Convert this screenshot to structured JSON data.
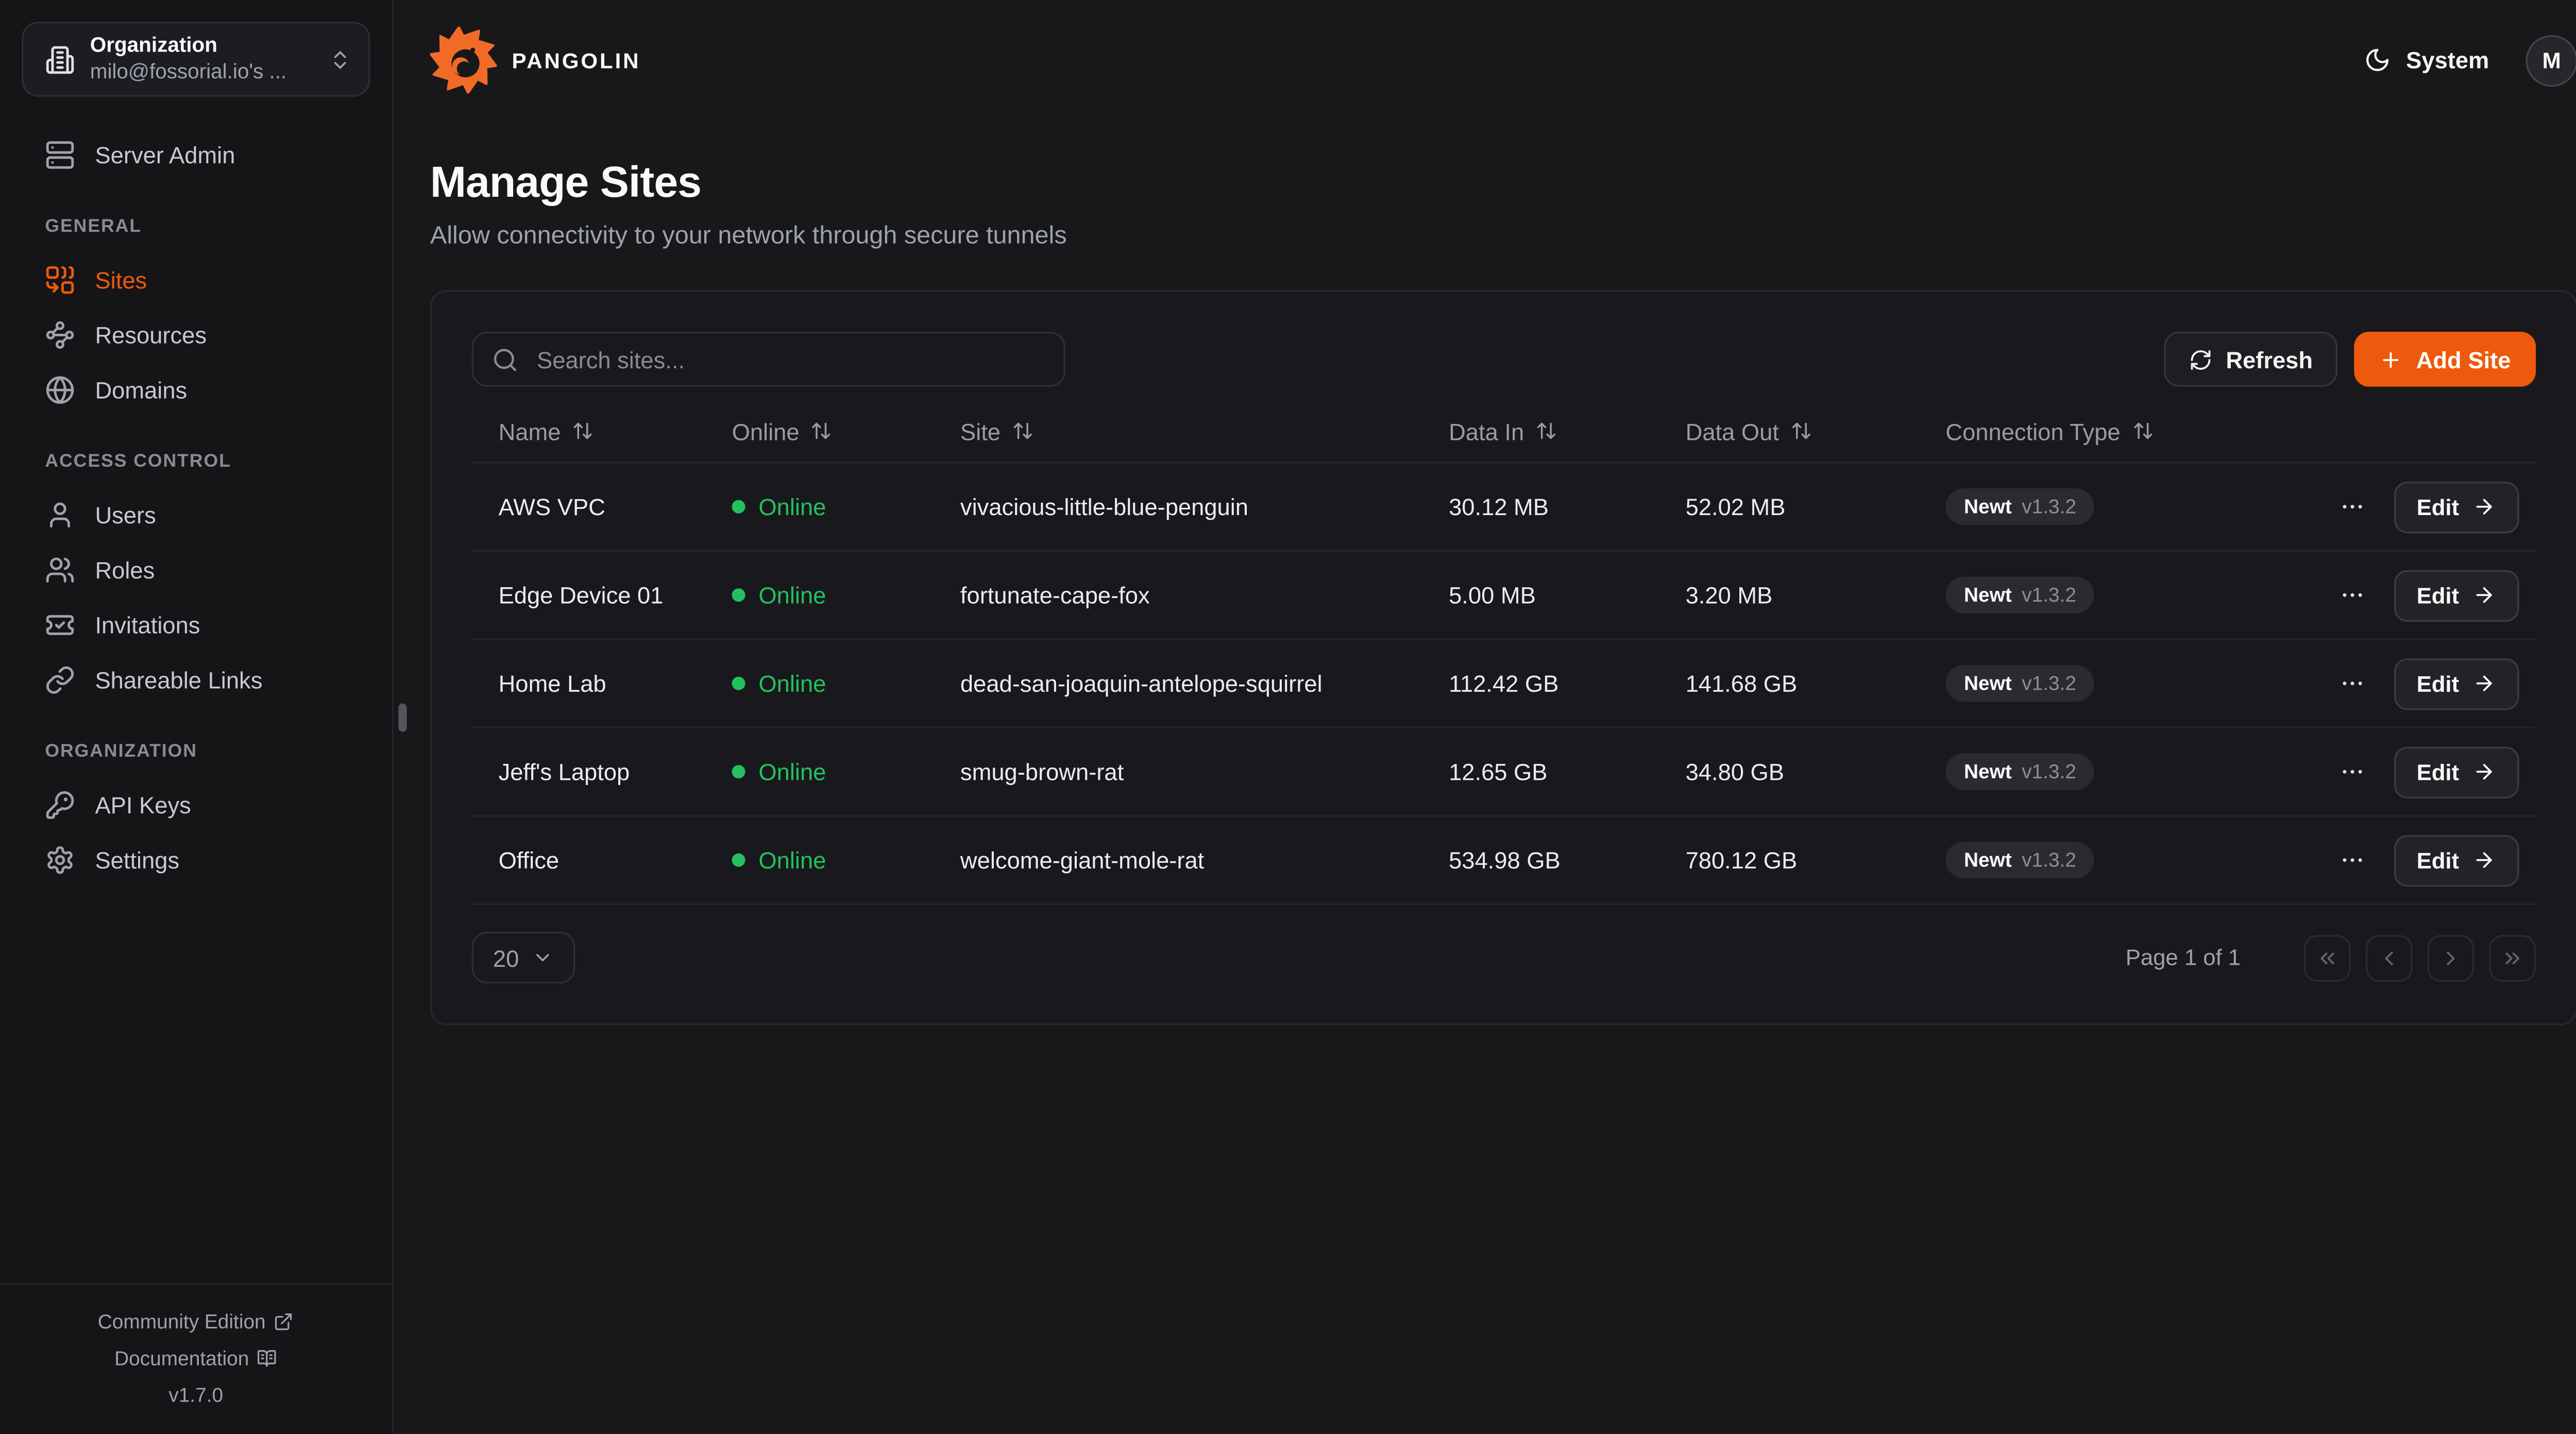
{
  "brand": {
    "name": "PANGOLIN"
  },
  "org_switcher": {
    "label": "Organization",
    "value": "milo@fossorial.io's ..."
  },
  "topbar": {
    "theme_label": "System",
    "avatar_initial": "M"
  },
  "sidebar": {
    "server_admin_label": "Server Admin",
    "sections": [
      {
        "heading": "GENERAL",
        "items": [
          {
            "label": "Sites",
            "icon": "sites-icon",
            "active": true
          },
          {
            "label": "Resources",
            "icon": "resources-icon",
            "active": false
          },
          {
            "label": "Domains",
            "icon": "globe-icon",
            "active": false
          }
        ]
      },
      {
        "heading": "ACCESS CONTROL",
        "items": [
          {
            "label": "Users",
            "icon": "user-icon",
            "active": false
          },
          {
            "label": "Roles",
            "icon": "users-icon",
            "active": false
          },
          {
            "label": "Invitations",
            "icon": "ticket-icon",
            "active": false
          },
          {
            "label": "Shareable Links",
            "icon": "link-icon",
            "active": false
          }
        ]
      },
      {
        "heading": "ORGANIZATION",
        "items": [
          {
            "label": "API Keys",
            "icon": "key-icon",
            "active": false
          },
          {
            "label": "Settings",
            "icon": "gear-icon",
            "active": false
          }
        ]
      }
    ],
    "footer": {
      "community_label": "Community Edition",
      "documentation_label": "Documentation",
      "version": "v1.7.0"
    }
  },
  "page": {
    "title": "Manage Sites",
    "subtitle": "Allow connectivity to your network through secure tunnels"
  },
  "toolbar": {
    "search_placeholder": "Search sites...",
    "refresh_label": "Refresh",
    "add_site_label": "Add Site"
  },
  "table": {
    "columns": [
      "Name",
      "Online",
      "Site",
      "Data In",
      "Data Out",
      "Connection Type"
    ],
    "edit_label": "Edit",
    "rows": [
      {
        "name": "AWS VPC",
        "status": "Online",
        "site": "vivacious-little-blue-penguin",
        "data_in": "30.12 MB",
        "data_out": "52.02 MB",
        "connection": "Newt",
        "version": "v1.3.2"
      },
      {
        "name": "Edge Device 01",
        "status": "Online",
        "site": "fortunate-cape-fox",
        "data_in": "5.00 MB",
        "data_out": "3.20 MB",
        "connection": "Newt",
        "version": "v1.3.2"
      },
      {
        "name": "Home Lab",
        "status": "Online",
        "site": "dead-san-joaquin-antelope-squirrel",
        "data_in": "112.42 GB",
        "data_out": "141.68 GB",
        "connection": "Newt",
        "version": "v1.3.2"
      },
      {
        "name": "Jeff's Laptop",
        "status": "Online",
        "site": "smug-brown-rat",
        "data_in": "12.65 GB",
        "data_out": "34.80 GB",
        "connection": "Newt",
        "version": "v1.3.2"
      },
      {
        "name": "Office",
        "status": "Online",
        "site": "welcome-giant-mole-rat",
        "data_in": "534.98 GB",
        "data_out": "780.12 GB",
        "connection": "Newt",
        "version": "v1.3.2"
      }
    ]
  },
  "pagination": {
    "page_size": "20",
    "status": "Page 1 of 1"
  },
  "icons": {
    "org": "building-icon",
    "org_toggle": "chevrons-up-down-icon",
    "server_admin": "server-icon",
    "theme": "moon-icon",
    "search": "search-icon",
    "refresh": "refresh-icon",
    "add": "plus-icon",
    "sort": "arrow-up-down-icon",
    "row_menu": "ellipsis-icon",
    "edit": "arrow-right-icon",
    "page_size": "chevron-down-icon",
    "first": "chevrons-left-icon",
    "prev": "chevron-left-icon",
    "next": "chevron-right-icon",
    "last": "chevrons-right-icon",
    "community": "external-link-icon",
    "documentation": "book-open-icon"
  },
  "colors": {
    "accent": "#ED5A0D",
    "logo_orange": "#F26B26",
    "online_green": "#24C05F",
    "sidebar_bg": "#151518",
    "main_bg": "#18181B",
    "card_bg": "#19191D"
  }
}
